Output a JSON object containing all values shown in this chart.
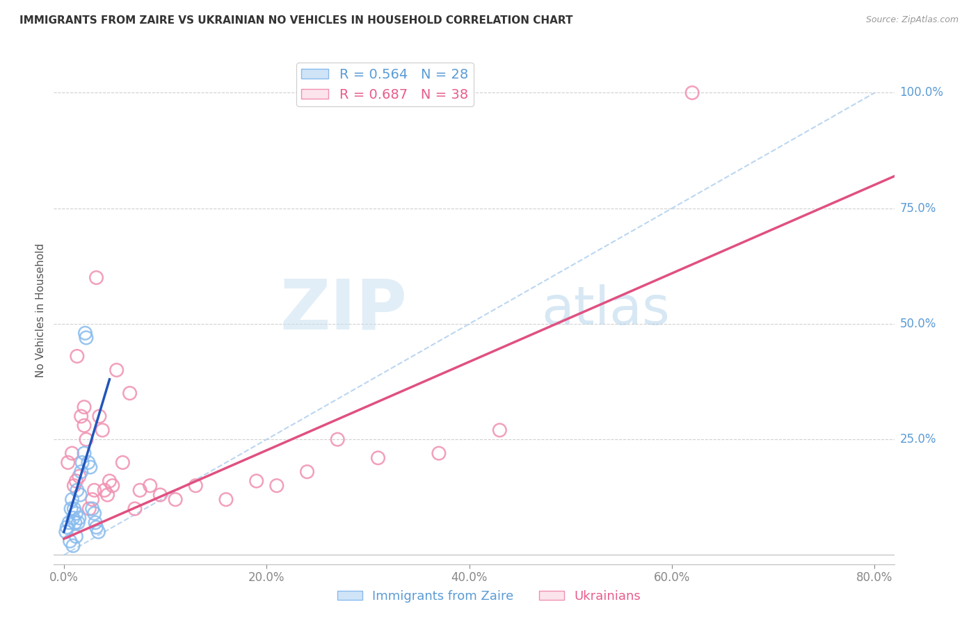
{
  "title": "IMMIGRANTS FROM ZAIRE VS UKRAINIAN NO VEHICLES IN HOUSEHOLD CORRELATION CHART",
  "source": "Source: ZipAtlas.com",
  "ylabel": "No Vehicles in Household",
  "x_ticks": [
    0.0,
    20.0,
    40.0,
    60.0,
    80.0
  ],
  "x_tick_labels": [
    "0.0%",
    "20.0%",
    "40.0%",
    "60.0%",
    "80.0%"
  ],
  "y_ticks": [
    0.0,
    0.25,
    0.5,
    0.75,
    1.0
  ],
  "y_tick_labels": [
    "",
    "25.0%",
    "50.0%",
    "75.0%",
    "100.0%"
  ],
  "xlim": [
    -1.0,
    82.0
  ],
  "ylim": [
    -0.02,
    1.08
  ],
  "legend_zaire": "R = 0.564   N = 28",
  "legend_ukr": "R = 0.687   N = 38",
  "watermark_zip": "ZIP",
  "watermark_atlas": "atlas",
  "background_color": "#ffffff",
  "grid_color": "#d0d0d0",
  "blue_scatter_color": "#88bbee",
  "pink_scatter_color": "#f090b0",
  "blue_line_color": "#2255bb",
  "pink_line_color": "#e05080",
  "blue_dash_color": "#aaccee",
  "scatter_zaire_x": [
    0.2,
    0.3,
    0.5,
    0.7,
    0.8,
    0.9,
    1.0,
    1.1,
    1.2,
    1.3,
    1.4,
    1.5,
    1.6,
    1.7,
    1.8,
    2.0,
    2.1,
    2.2,
    2.4,
    2.6,
    2.8,
    3.0,
    3.1,
    3.2,
    3.4,
    0.6,
    0.9,
    1.2
  ],
  "scatter_zaire_y": [
    0.05,
    0.06,
    0.07,
    0.1,
    0.12,
    0.08,
    0.1,
    0.07,
    0.09,
    0.14,
    0.07,
    0.08,
    0.13,
    0.18,
    0.2,
    0.22,
    0.48,
    0.47,
    0.2,
    0.19,
    0.1,
    0.09,
    0.07,
    0.06,
    0.05,
    0.03,
    0.02,
    0.04
  ],
  "scatter_ukr_x": [
    0.4,
    0.8,
    1.0,
    1.2,
    1.5,
    1.7,
    2.0,
    2.2,
    2.5,
    2.8,
    3.0,
    3.2,
    3.5,
    3.8,
    4.0,
    4.3,
    4.8,
    5.2,
    5.8,
    6.5,
    7.5,
    8.5,
    9.5,
    11.0,
    13.0,
    16.0,
    19.0,
    21.0,
    24.0,
    27.0,
    31.0,
    37.0,
    43.0,
    62.0,
    1.3,
    2.0,
    4.5,
    7.0
  ],
  "scatter_ukr_y": [
    0.2,
    0.22,
    0.15,
    0.16,
    0.17,
    0.3,
    0.28,
    0.25,
    0.1,
    0.12,
    0.14,
    0.6,
    0.3,
    0.27,
    0.14,
    0.13,
    0.15,
    0.4,
    0.2,
    0.35,
    0.14,
    0.15,
    0.13,
    0.12,
    0.15,
    0.12,
    0.16,
    0.15,
    0.18,
    0.25,
    0.21,
    0.22,
    0.27,
    1.0,
    0.43,
    0.32,
    0.16,
    0.1
  ],
  "blue_regline_x": [
    0.0,
    4.5
  ],
  "blue_regline_y": [
    0.05,
    0.38
  ],
  "pink_regline_x": [
    0.0,
    82.0
  ],
  "pink_regline_y": [
    0.035,
    0.82
  ],
  "blue_dashline_x": [
    0.0,
    80.0
  ],
  "blue_dashline_y": [
    0.0,
    1.0
  ]
}
